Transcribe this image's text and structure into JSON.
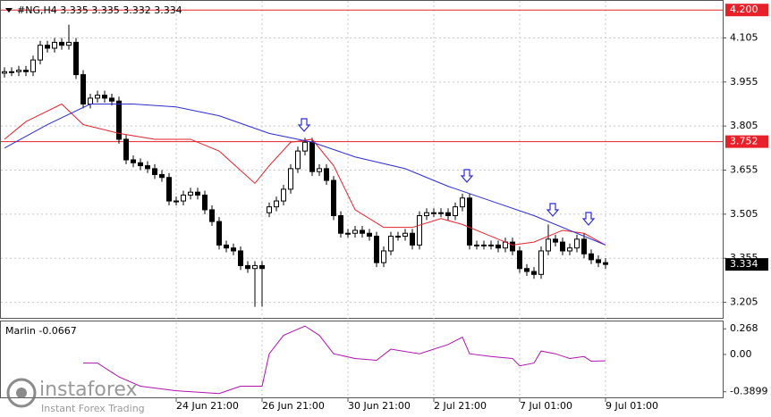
{
  "chart_data": [
    {
      "type": "candlestick",
      "title": "#NG,H4  3.335 3.335 3.332 3.334",
      "categories": [
        null,
        null,
        null,
        null,
        null,
        null,
        null,
        null,
        null,
        null,
        null,
        null,
        null,
        null,
        null,
        null,
        null,
        null,
        null,
        null,
        null,
        null,
        null,
        null,
        "24 Jun 21:00",
        null,
        null,
        null,
        null,
        null,
        null,
        null,
        null,
        null,
        null,
        null,
        "26 Jun 21:00",
        null,
        null,
        null,
        null,
        null,
        null,
        null,
        null,
        null,
        null,
        null,
        "30 Jun 21:00",
        null,
        null,
        null,
        null,
        null,
        null,
        null,
        null,
        null,
        null,
        null,
        "2 Jul 21:00",
        null,
        null,
        null,
        null,
        null,
        null,
        null,
        null,
        null,
        null,
        null,
        "7 Jul 01:00",
        null,
        null,
        null,
        null,
        null,
        null,
        null,
        null,
        null,
        null,
        null,
        "9 Jul 01:00"
      ],
      "open": [
        3.985,
        3.99,
        3.99,
        3.995,
        3.99,
        4.03,
        4.08,
        4.07,
        4.09,
        4.08,
        4.09,
        3.98,
        3.88,
        3.9,
        3.91,
        3.9,
        3.89,
        3.76,
        3.69,
        3.68,
        3.67,
        3.66,
        3.64,
        3.63,
        3.55,
        3.55,
        3.57,
        3.58,
        3.57,
        3.52,
        3.48,
        3.4,
        3.39,
        3.38,
        3.33,
        3.32,
        3.33,
        3.51,
        3.53,
        3.55,
        3.59,
        3.66,
        3.72,
        3.75,
        3.65,
        3.66,
        3.62,
        3.5,
        3.44,
        3.44,
        3.45,
        3.44,
        3.43,
        3.34,
        3.38,
        3.43,
        3.43,
        3.44,
        3.4,
        3.5,
        3.51,
        3.51,
        3.51,
        3.5,
        3.53,
        3.56,
        3.4,
        3.4,
        3.4,
        3.4,
        3.39,
        3.41,
        3.38,
        3.32,
        3.31,
        3.3,
        3.38,
        3.42,
        3.41,
        3.38,
        3.39,
        3.42,
        3.37,
        3.35,
        3.34
      ],
      "high": [
        4.005,
        4.005,
        4.01,
        4.01,
        4.045,
        4.095,
        4.095,
        4.105,
        4.105,
        4.15,
        4.105,
        3.995,
        3.915,
        3.925,
        3.925,
        3.915,
        3.905,
        3.775,
        3.705,
        3.695,
        3.685,
        3.675,
        3.655,
        3.645,
        3.565,
        3.585,
        3.595,
        3.595,
        3.585,
        3.535,
        3.495,
        3.415,
        3.405,
        3.395,
        3.345,
        3.345,
        3.345,
        3.545,
        3.565,
        3.605,
        3.675,
        3.735,
        3.765,
        3.765,
        3.675,
        3.675,
        3.635,
        3.515,
        3.455,
        3.465,
        3.465,
        3.455,
        3.445,
        3.395,
        3.445,
        3.445,
        3.455,
        3.455,
        3.515,
        3.525,
        3.525,
        3.525,
        3.525,
        3.545,
        3.575,
        3.575,
        3.415,
        3.415,
        3.415,
        3.415,
        3.425,
        3.425,
        3.395,
        3.335,
        3.325,
        3.395,
        3.47,
        3.435,
        3.425,
        3.405,
        3.435,
        3.44,
        3.385,
        3.365,
        3.355
      ],
      "low": [
        3.97,
        3.975,
        3.975,
        3.975,
        3.975,
        4.015,
        4.055,
        4.055,
        4.065,
        4.065,
        3.965,
        3.865,
        3.865,
        3.885,
        3.885,
        3.875,
        3.745,
        3.675,
        3.665,
        3.655,
        3.645,
        3.625,
        3.615,
        3.535,
        3.535,
        3.535,
        3.555,
        3.555,
        3.505,
        3.465,
        3.385,
        3.375,
        3.365,
        3.315,
        3.305,
        3.19,
        3.19,
        3.495,
        3.515,
        3.535,
        3.575,
        3.645,
        3.705,
        3.635,
        3.635,
        3.605,
        3.485,
        3.425,
        3.425,
        3.425,
        3.425,
        3.415,
        3.325,
        3.325,
        3.365,
        3.415,
        3.415,
        3.385,
        3.385,
        3.485,
        3.495,
        3.495,
        3.485,
        3.485,
        3.515,
        3.385,
        3.385,
        3.385,
        3.385,
        3.375,
        3.375,
        3.365,
        3.305,
        3.295,
        3.285,
        3.285,
        3.365,
        3.395,
        3.365,
        3.365,
        3.375,
        3.355,
        3.335,
        3.325,
        3.319
      ],
      "close": [
        3.99,
        3.99,
        3.995,
        3.99,
        4.03,
        4.08,
        4.07,
        4.09,
        4.08,
        4.09,
        3.98,
        3.88,
        3.9,
        3.91,
        3.9,
        3.89,
        3.76,
        3.69,
        3.68,
        3.67,
        3.66,
        3.64,
        3.63,
        3.55,
        3.55,
        3.57,
        3.58,
        3.57,
        3.52,
        3.48,
        3.4,
        3.39,
        3.38,
        3.33,
        3.32,
        3.33,
        3.32,
        3.53,
        3.55,
        3.59,
        3.66,
        3.72,
        3.75,
        3.65,
        3.66,
        3.62,
        3.5,
        3.44,
        3.44,
        3.45,
        3.44,
        3.43,
        3.34,
        3.38,
        3.43,
        3.43,
        3.44,
        3.4,
        3.5,
        3.51,
        3.51,
        3.51,
        3.5,
        3.53,
        3.56,
        3.4,
        3.4,
        3.4,
        3.4,
        3.39,
        3.41,
        3.38,
        3.32,
        3.31,
        3.3,
        3.38,
        3.42,
        3.41,
        3.38,
        3.39,
        3.42,
        3.37,
        3.35,
        3.34,
        3.334
      ],
      "lines": [
        {
          "color": "#e8202a",
          "x": [
            0,
            3,
            8,
            11,
            16,
            21,
            26,
            30,
            35,
            37,
            40,
            43,
            46,
            49,
            53,
            57,
            61,
            64,
            68,
            71,
            74,
            78,
            81,
            84
          ],
          "values": [
            3.76,
            3.82,
            3.88,
            3.81,
            3.78,
            3.76,
            3.76,
            3.72,
            3.61,
            3.67,
            3.75,
            3.76,
            3.67,
            3.52,
            3.46,
            3.46,
            3.49,
            3.47,
            3.43,
            3.4,
            3.41,
            3.45,
            3.44,
            3.4
          ]
        },
        {
          "color": "#2b2bd6",
          "x": [
            0,
            6,
            12,
            18,
            24,
            30,
            37,
            43,
            49,
            56,
            62,
            68,
            74,
            80,
            84
          ],
          "values": [
            3.73,
            3.81,
            3.88,
            3.88,
            3.87,
            3.84,
            3.78,
            3.75,
            3.7,
            3.66,
            3.6,
            3.55,
            3.5,
            3.44,
            3.4
          ]
        }
      ],
      "levels": [
        {
          "value": 4.2,
          "label": "4.200"
        },
        {
          "value": 3.752,
          "label": "3.752"
        }
      ],
      "level_color": "#e8202a",
      "ylim": [
        3.152,
        4.228
      ],
      "yticks": [
        3.205,
        3.355,
        3.505,
        3.655,
        3.805,
        3.955,
        4.105
      ],
      "grid": true
    },
    {
      "type": "line",
      "x": [
        11,
        13,
        16,
        19,
        24,
        30,
        33,
        36,
        37,
        39,
        42,
        44,
        46,
        49,
        52,
        54,
        58,
        62,
        64,
        65,
        68,
        71,
        72,
        74,
        75,
        77,
        79,
        81,
        82,
        84
      ],
      "series": [
        {
          "name": "Marlin",
          "color": "#b012b0",
          "values": [
            -0.09,
            -0.09,
            -0.235,
            -0.332,
            -0.38,
            -0.409,
            -0.332,
            -0.332,
            0.007,
            0.2,
            0.297,
            0.2,
            0.007,
            -0.042,
            -0.061,
            0.055,
            0.007,
            0.104,
            0.181,
            0.007,
            -0.022,
            -0.042,
            -0.119,
            -0.09,
            0.036,
            0.007,
            -0.042,
            -0.022,
            -0.071,
            -0.067
          ]
        }
      ],
      "current_value": -0.0667,
      "ylim": [
        -0.458,
        0.345
      ],
      "yticks": [
        -0.3899,
        {
          "value": 0,
          "label": "0.00"
        },
        0.268
      ]
    }
  ],
  "logo": {
    "name": "instaforex",
    "tagline": "Instant Forex Trading"
  }
}
